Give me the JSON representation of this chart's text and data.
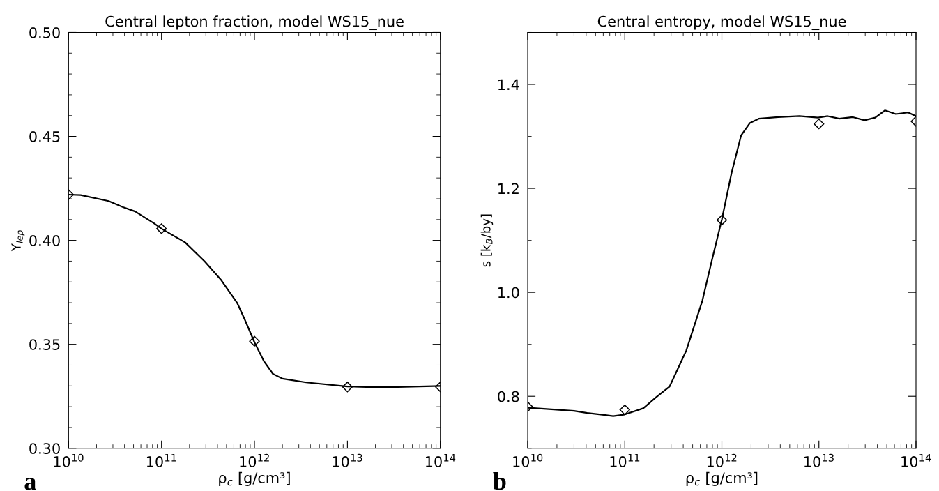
{
  "chart_data": [
    {
      "type": "line",
      "title": "Central lepton fraction, model WS15_nue",
      "xlabel": "ρ$_{c}$ [g/cm³]",
      "ylabel": "Y$_{lep}$",
      "log": "x",
      "xlim": [
        10000000000.0,
        100000000000000.0
      ],
      "ylim": [
        0.3,
        0.5
      ],
      "xticks": [
        {
          "value": 10000000000.0,
          "label": "10$^{10}$"
        },
        {
          "value": 100000000000.0,
          "label": "10$^{11}$"
        },
        {
          "value": 1000000000000.0,
          "label": "10$^{12}$"
        },
        {
          "value": 10000000000000.0,
          "label": "10$^{13}$"
        },
        {
          "value": 100000000000000.0,
          "label": "10$^{14}$"
        }
      ],
      "yticks": [
        {
          "value": 0.3,
          "label": "0.30"
        },
        {
          "value": 0.35,
          "label": "0.35"
        },
        {
          "value": 0.4,
          "label": "0.40"
        },
        {
          "value": 0.45,
          "label": "0.45"
        },
        {
          "value": 0.5,
          "label": "0.50"
        }
      ],
      "grid": false,
      "annotations": [
        "a"
      ],
      "series": [
        {
          "color": "#000000",
          "line_style": "solid",
          "marker": "none",
          "x": [
            10000000000.0,
            13500000000.0,
            27000000000.0,
            39000000000.0,
            52000000000.0,
            83000000000.0,
            100000000000.0,
            180000000000.0,
            290000000000.0,
            440000000000.0,
            650000000000.0,
            790000000000.0,
            1000000000000.0,
            1260000000000.0,
            1580000000000.0,
            2000000000000.0,
            3600000000000.0,
            10000000000000.0,
            16000000000000.0,
            35000000000000.0,
            100000000000000.0
          ],
          "values": [
            0.422,
            0.4218,
            0.4189,
            0.4159,
            0.4139,
            0.4082,
            0.4056,
            0.399,
            0.39,
            0.3808,
            0.37,
            0.3617,
            0.351,
            0.342,
            0.3358,
            0.3335,
            0.3317,
            0.3297,
            0.3295,
            0.3295,
            0.33
          ]
        },
        {
          "type": "scatter",
          "color": "#000000",
          "marker": "diamond",
          "x": [
            10000000000.0,
            100000000000.0,
            1000000000000.0,
            10000000000000.0,
            100000000000000.0
          ],
          "values": [
            0.422,
            0.4056,
            0.3515,
            0.3295,
            0.3295
          ]
        }
      ]
    },
    {
      "type": "line",
      "title": "Central entropy, model WS15_nue",
      "xlabel": "ρ$_{c}$ [g/cm³]",
      "ylabel": "s [k$_{B}$/by]",
      "log": "x",
      "xlim": [
        10000000000.0,
        100000000000000.0
      ],
      "ylim": [
        0.7,
        1.5
      ],
      "xticks": [
        {
          "value": 10000000000.0,
          "label": "10$^{10}$"
        },
        {
          "value": 100000000000.0,
          "label": "10$^{11}$"
        },
        {
          "value": 1000000000000.0,
          "label": "10$^{12}$"
        },
        {
          "value": 10000000000000.0,
          "label": "10$^{13}$"
        },
        {
          "value": 100000000000000.0,
          "label": "10$^{14}$"
        }
      ],
      "yticks": [
        {
          "value": 0.8,
          "label": "0.8"
        },
        {
          "value": 1.0,
          "label": "1.0"
        },
        {
          "value": 1.2,
          "label": "1.2"
        },
        {
          "value": 1.4,
          "label": "1.4"
        }
      ],
      "grid": false,
      "annotations": [
        "b"
      ],
      "series": [
        {
          "color": "#000000",
          "line_style": "solid",
          "marker": "none",
          "x": [
            10000000000.0,
            30000000000.0,
            41000000000.0,
            63000000000.0,
            76000000000.0,
            100000000000.0,
            155000000000.0,
            210000000000.0,
            290000000000.0,
            430000000000.0,
            630000000000.0,
            790000000000.0,
            1000000000000.0,
            1260000000000.0,
            1580000000000.0,
            1950000000000.0,
            2400000000000.0,
            3800000000000.0,
            6300000000000.0,
            9800000000000.0,
            12300000000000.0,
            16200000000000.0,
            22400000000000.0,
            29500000000000.0,
            38000000000000.0,
            48000000000000.0,
            62000000000000.0,
            83000000000000.0,
            100000000000000.0
          ],
          "values": [
            0.778,
            0.772,
            0.768,
            0.764,
            0.762,
            0.765,
            0.777,
            0.798,
            0.819,
            0.888,
            0.984,
            1.062,
            1.14,
            1.23,
            1.302,
            1.326,
            1.334,
            1.337,
            1.339,
            1.336,
            1.339,
            1.334,
            1.337,
            1.331,
            1.336,
            1.35,
            1.343,
            1.346,
            1.339
          ]
        },
        {
          "type": "scatter",
          "color": "#000000",
          "marker": "diamond",
          "x": [
            10000000000.0,
            100000000000.0,
            1000000000000.0,
            10000000000000.0,
            100000000000000.0
          ],
          "values": [
            0.78,
            0.774,
            1.139,
            1.324,
            1.329
          ]
        }
      ]
    }
  ]
}
